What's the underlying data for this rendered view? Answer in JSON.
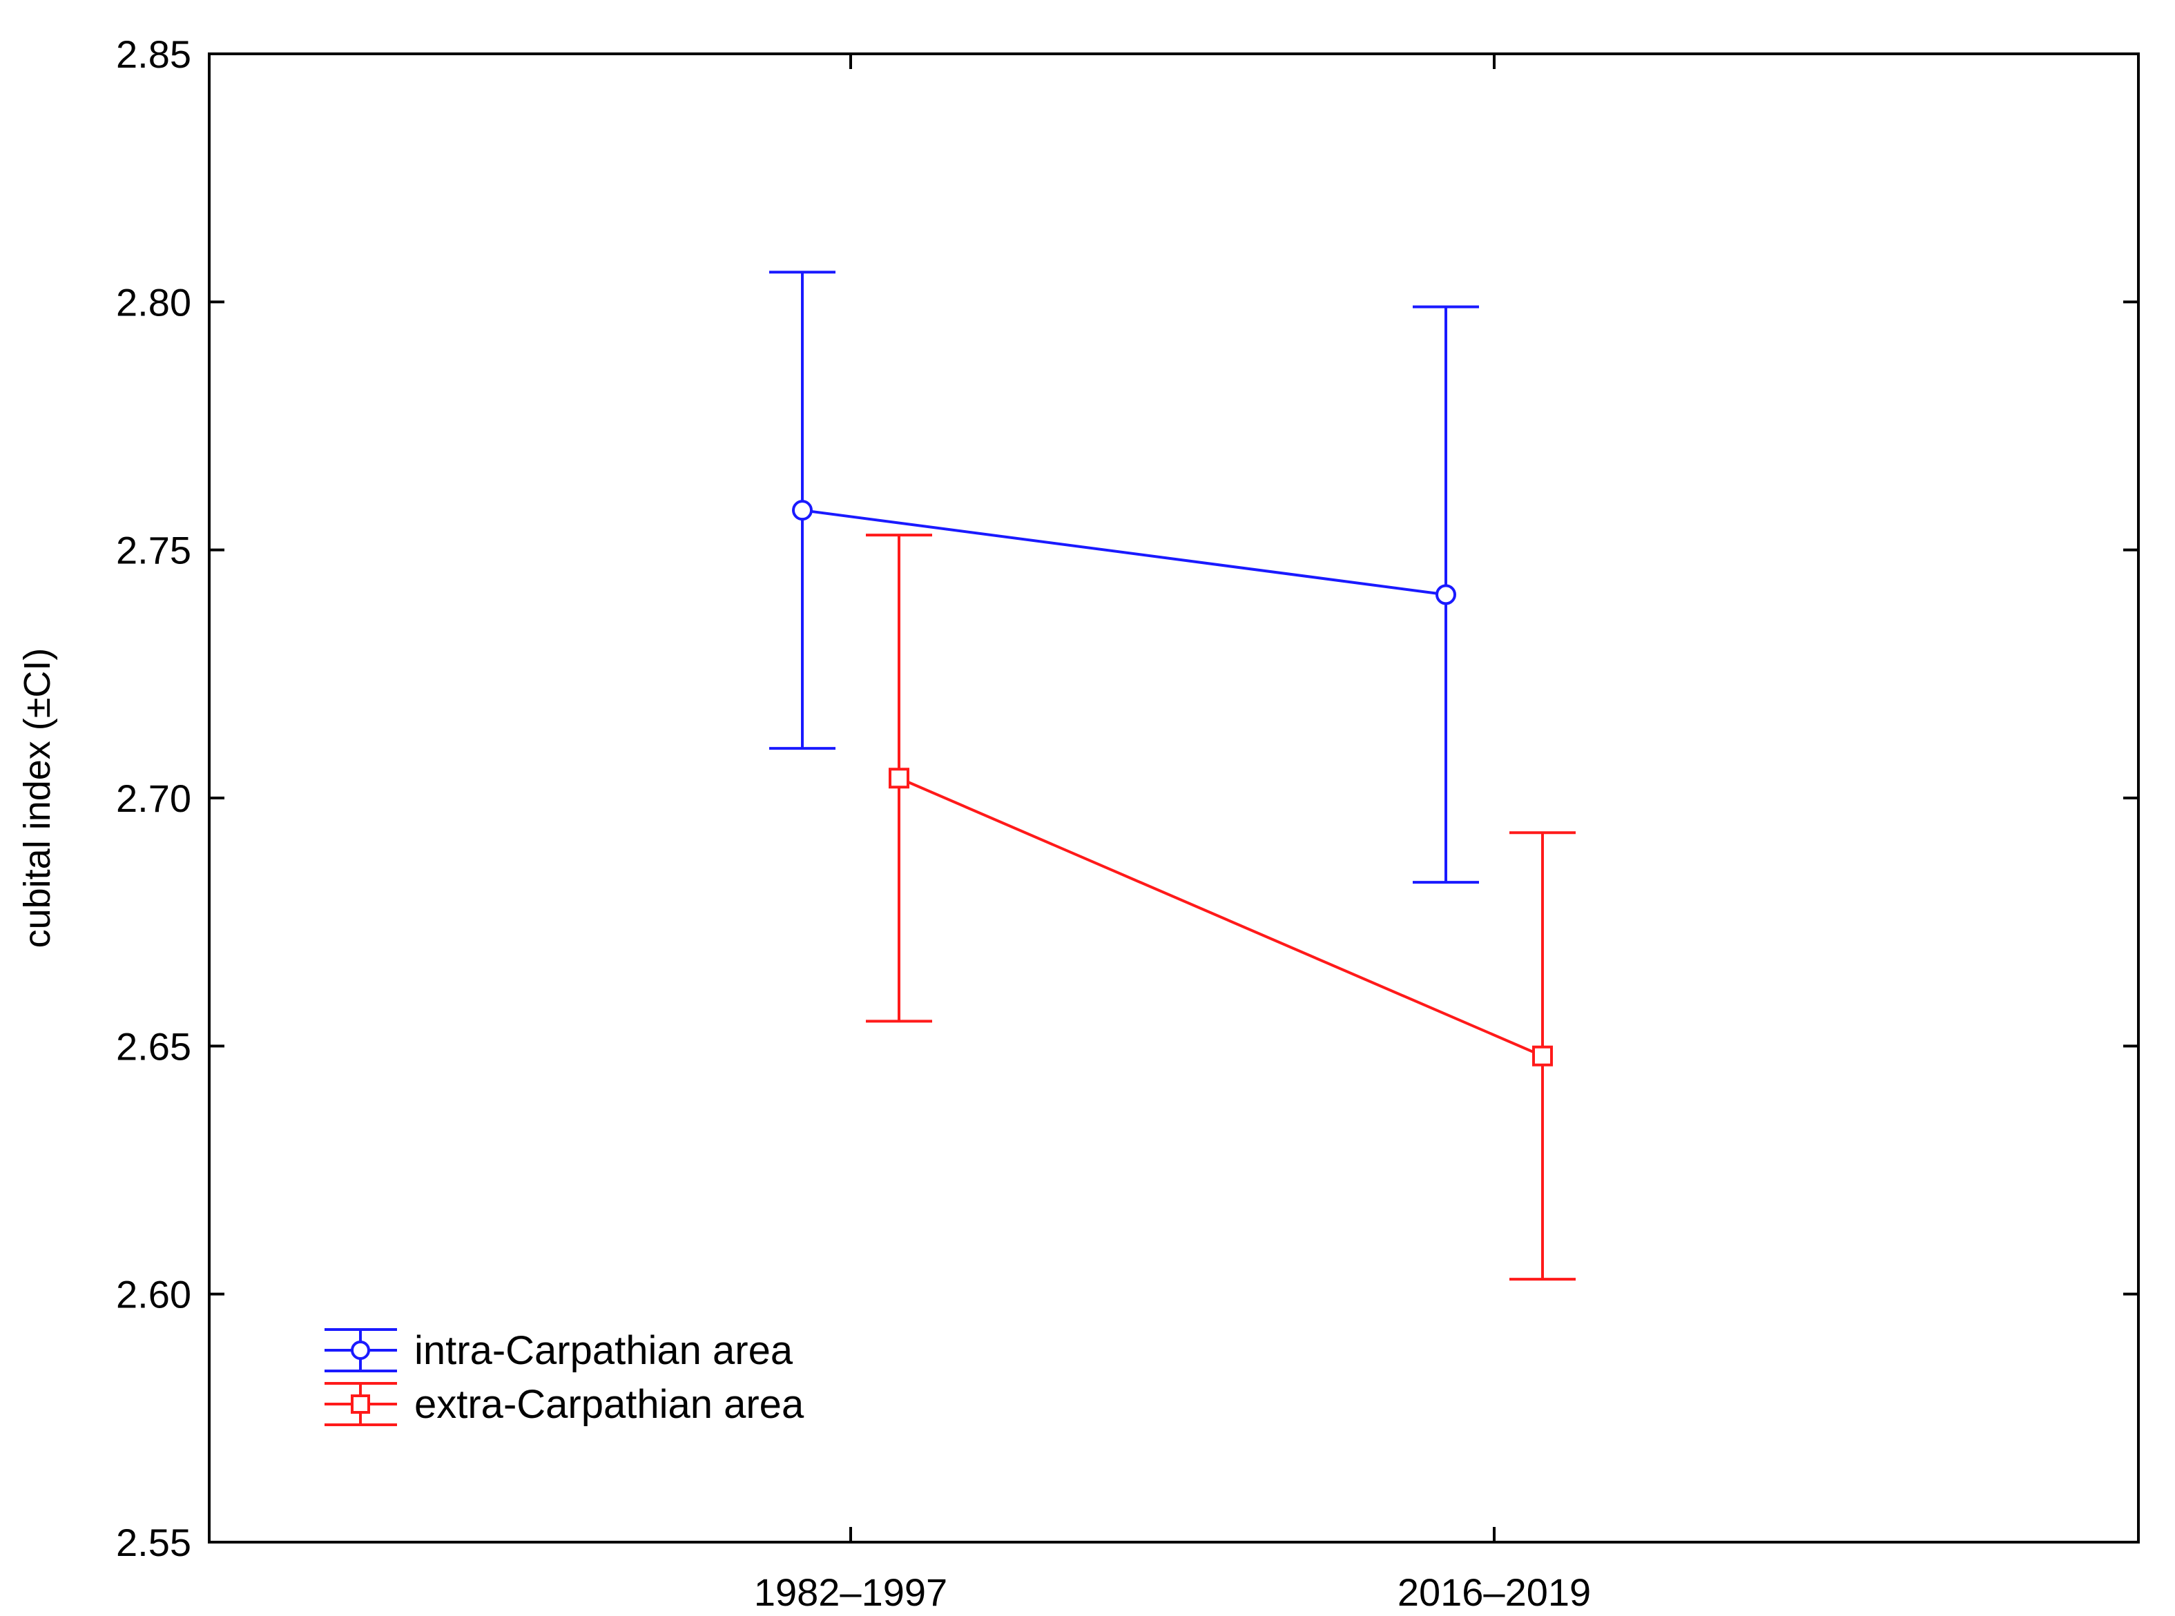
{
  "chart_data": {
    "type": "line",
    "categories": [
      "1982–1997",
      "2016–2019"
    ],
    "ylabel": "cubital index (±CI)",
    "xlabel": "",
    "ylim": [
      2.55,
      2.85
    ],
    "yticks": [
      "2.55",
      "2.60",
      "2.65",
      "2.70",
      "2.75",
      "2.80",
      "2.85"
    ],
    "grid": false,
    "legend_position": "bottom-left",
    "series": [
      {
        "name": "intra-Carpathian area",
        "color": "#1a1aff",
        "marker": "circle",
        "values": [
          2.758,
          2.741
        ],
        "ci_low": [
          2.71,
          2.683
        ],
        "ci_high": [
          2.806,
          2.799
        ]
      },
      {
        "name": "extra-Carpathian area",
        "color": "#ff1a1a",
        "marker": "square",
        "values": [
          2.704,
          2.648
        ],
        "ci_low": [
          2.655,
          2.603
        ],
        "ci_high": [
          2.753,
          2.693
        ]
      }
    ]
  }
}
